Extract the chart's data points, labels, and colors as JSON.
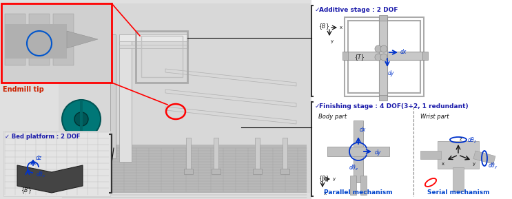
{
  "bg_color_left": "#e8e8e8",
  "bg_color_right": "#ffffff",
  "colors": {
    "red": "#ff0000",
    "blue": "#0055cc",
    "dark_blue": "#1a1aaa",
    "blue_arrow": "#0033cc",
    "black": "#111111",
    "light_gray": "#c8c8c8",
    "mid_gray": "#aaaaaa",
    "dark_gray": "#666666",
    "teal": "#008888",
    "red_label": "#cc2200",
    "blue_label": "#0044cc",
    "bracket": "#333333",
    "inset_bg": "#d4d4d4",
    "white": "#ffffff"
  },
  "annotations": {
    "endmill_tip": "Endmill tip",
    "bed_platform": "✓ Bed platform : 2 DOF",
    "additive_stage": "Additive stage : 2 DOF",
    "finishing_stage": "Finishing stage : 4 DOF(3+2, 1 redundant)",
    "body_part": "Body part",
    "wrist_part": "Wrist part",
    "parallel_mechanism": "Parallel mechanism",
    "serial_mechanism": "Serial mechanism",
    "B_frame": "{B}",
    "T_frame": "{T}"
  },
  "figsize": [
    7.43,
    2.89
  ],
  "dpi": 100
}
